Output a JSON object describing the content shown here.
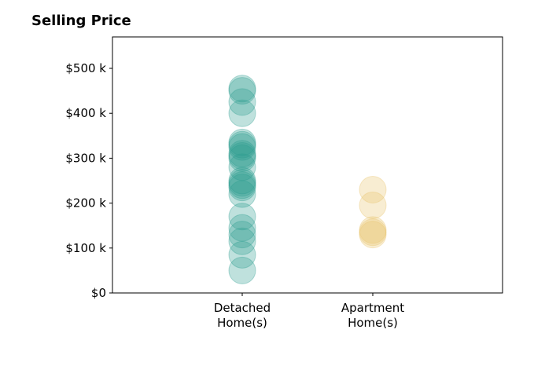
{
  "chart_data": {
    "type": "scatter",
    "title": "Selling Price",
    "xlabel": "",
    "ylabel": "",
    "categories": [
      "Detached\nHome(s)",
      "Apartment\nHome(s)"
    ],
    "ylim": [
      0,
      570000
    ],
    "yticks": [
      0,
      100000,
      200000,
      300000,
      400000,
      500000
    ],
    "ytick_labels": [
      "$0",
      "$100 k",
      "$200 k",
      "$300 k",
      "$400 k",
      "$500 k"
    ],
    "grid": false,
    "legend": "none",
    "series": [
      {
        "category": "Detached\nHome(s)",
        "color": "#2a9d8f",
        "values": [
          455000,
          450000,
          425000,
          400000,
          335000,
          330000,
          325000,
          310000,
          305000,
          300000,
          280000,
          250000,
          245000,
          240000,
          235000,
          220000,
          170000,
          145000,
          130000,
          115000,
          85000,
          50000
        ]
      },
      {
        "category": "Apartment\nHome(s)",
        "color": "#e9c46a",
        "values": [
          230000,
          195000,
          140000,
          135000,
          130000
        ]
      }
    ]
  }
}
